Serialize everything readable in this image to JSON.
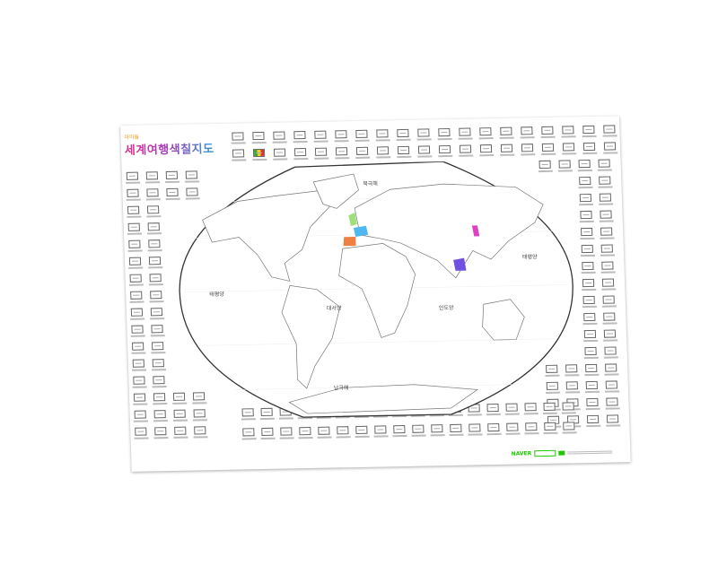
{
  "poster": {
    "brand": "아이들",
    "title": "세계여행색칠지도",
    "oceans": {
      "arctic": "북극해",
      "pacific_west": "태평양",
      "pacific_east": "태평양",
      "atlantic": "대서양",
      "indian": "인도양",
      "southern": "남극해"
    },
    "footer": {
      "logo": "NAVER"
    },
    "colored_regions": {
      "uk": "#9ee07a",
      "france": "#4fb8f0",
      "spain": "#f08040",
      "korea": "#e040c8",
      "indochina": "#7050e0"
    },
    "colored_flags": {
      "mali": [
        "#3aa830",
        "#f0d020",
        "#e03030"
      ]
    }
  }
}
